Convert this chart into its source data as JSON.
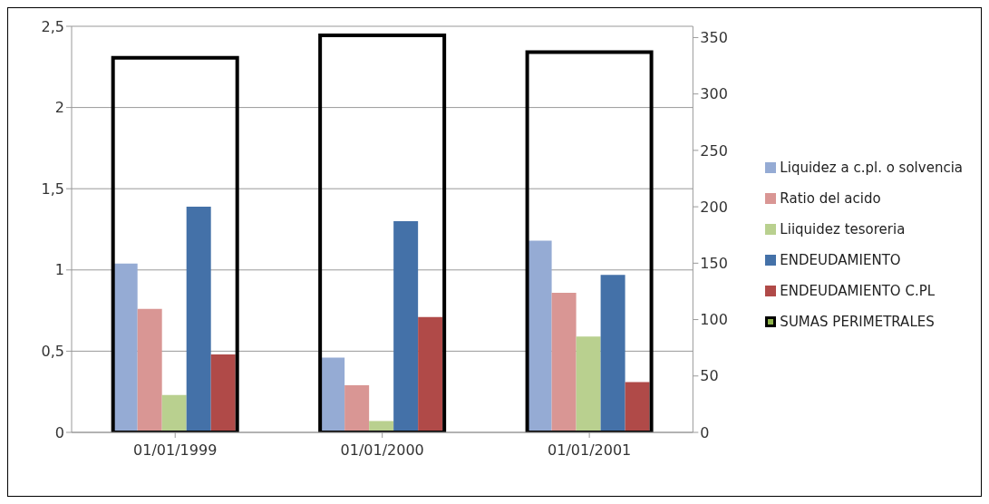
{
  "chart_data": {
    "type": "bar",
    "categories": [
      "01/01/1999",
      "01/01/2000",
      "01/01/2001"
    ],
    "series": [
      {
        "name": "Liquidez a c.pl. o solvencia",
        "color": "#95abd4",
        "values": [
          1.04,
          0.46,
          1.18
        ]
      },
      {
        "name": "Ratio del acido",
        "color": "#d99694",
        "values": [
          0.76,
          0.29,
          0.86
        ]
      },
      {
        "name": "Liiquidez  tesoreria",
        "color": "#b9d08f",
        "values": [
          0.23,
          0.07,
          0.59
        ]
      },
      {
        "name": "ENDEUDAMIENTO",
        "color": "#4471a8",
        "values": [
          1.39,
          1.3,
          0.97
        ]
      },
      {
        "name": "ENDEUDAMIENTO C.PL",
        "color": "#b04a48",
        "values": [
          0.48,
          0.71,
          0.31
        ]
      },
      {
        "name": "SUMAS PERIMETRALES",
        "color": "#000000",
        "axis": "y2",
        "values": [
          332,
          352,
          337
        ]
      }
    ],
    "ylim": [
      0,
      2.5
    ],
    "yticks": [
      0,
      {
        "value": 0.5,
        "label": "0,5"
      },
      1,
      {
        "value": 1.5,
        "label": "1,5"
      },
      2,
      {
        "value": 2.5,
        "label": "2,5"
      }
    ],
    "y2lim": [
      0,
      360
    ],
    "y2ticks": [
      0,
      50,
      100,
      150,
      200,
      250,
      300,
      350
    ],
    "grid": "y",
    "legend": "right"
  }
}
